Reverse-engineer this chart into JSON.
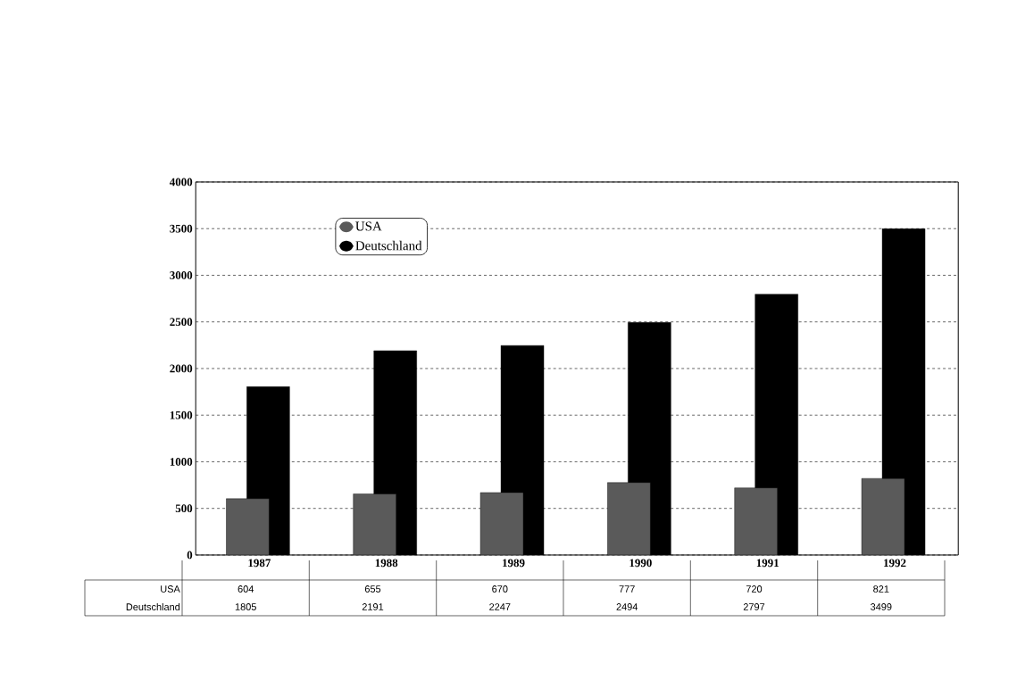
{
  "chart_data": {
    "type": "bar",
    "categories": [
      "1987",
      "1988",
      "1989",
      "1990",
      "1991",
      "1992"
    ],
    "series": [
      {
        "name": "USA",
        "color": "#5a5a5a",
        "values": [
          604,
          655,
          670,
          777,
          720,
          821
        ]
      },
      {
        "name": "Deutschland",
        "color": "#000000",
        "values": [
          1805,
          2191,
          2247,
          2494,
          2797,
          3499
        ]
      }
    ],
    "ylim": [
      0,
      4000
    ],
    "yticks": [
      0,
      500,
      1000,
      1500,
      2000,
      2500,
      3000,
      3500,
      4000
    ],
    "grid": "y",
    "legend": "top left",
    "data_labels": true
  }
}
